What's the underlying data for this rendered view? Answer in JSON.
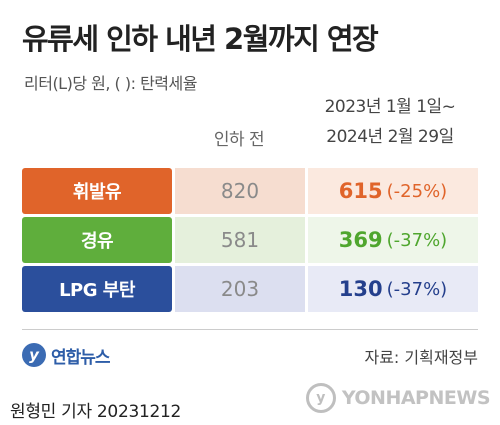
{
  "title": "유류세 인하 내년 2월까지 연장",
  "subtitle": "리터(L)당 원, ( ): 탄력세율",
  "chart_data": {
    "type": "table",
    "columns": [
      "인하 전",
      "2023년 1월 1일~",
      "2024년 2월 29일"
    ],
    "rows": [
      {
        "label": "휘발유",
        "before": "820",
        "after": "615",
        "rate": "(-25%)",
        "color": "#e0642a",
        "bg_before": "#f6ddd0",
        "bg_after": "#fbe9df"
      },
      {
        "label": "경유",
        "before": "581",
        "after": "369",
        "rate": "(-37%)",
        "color": "#5fae3c",
        "bg_before": "#e5f0dc",
        "bg_after": "#eef6e9"
      },
      {
        "label": "LPG 부탄",
        "before": "203",
        "after": "130",
        "rate": "(-37%)",
        "color": "#2b4f9c",
        "bg_before": "#dcdff0",
        "bg_after": "#e8eaf6"
      }
    ],
    "value_colors": [
      "#e0642a",
      "#4fa62e",
      "#243f8c"
    ]
  },
  "logo_text": "연합뉴스",
  "logo_mark": "y",
  "source": "자료: 기획재정부",
  "credit": "원형민 기자  20231212",
  "watermark_text": "YONHAPNEWS",
  "watermark_mark": "y"
}
